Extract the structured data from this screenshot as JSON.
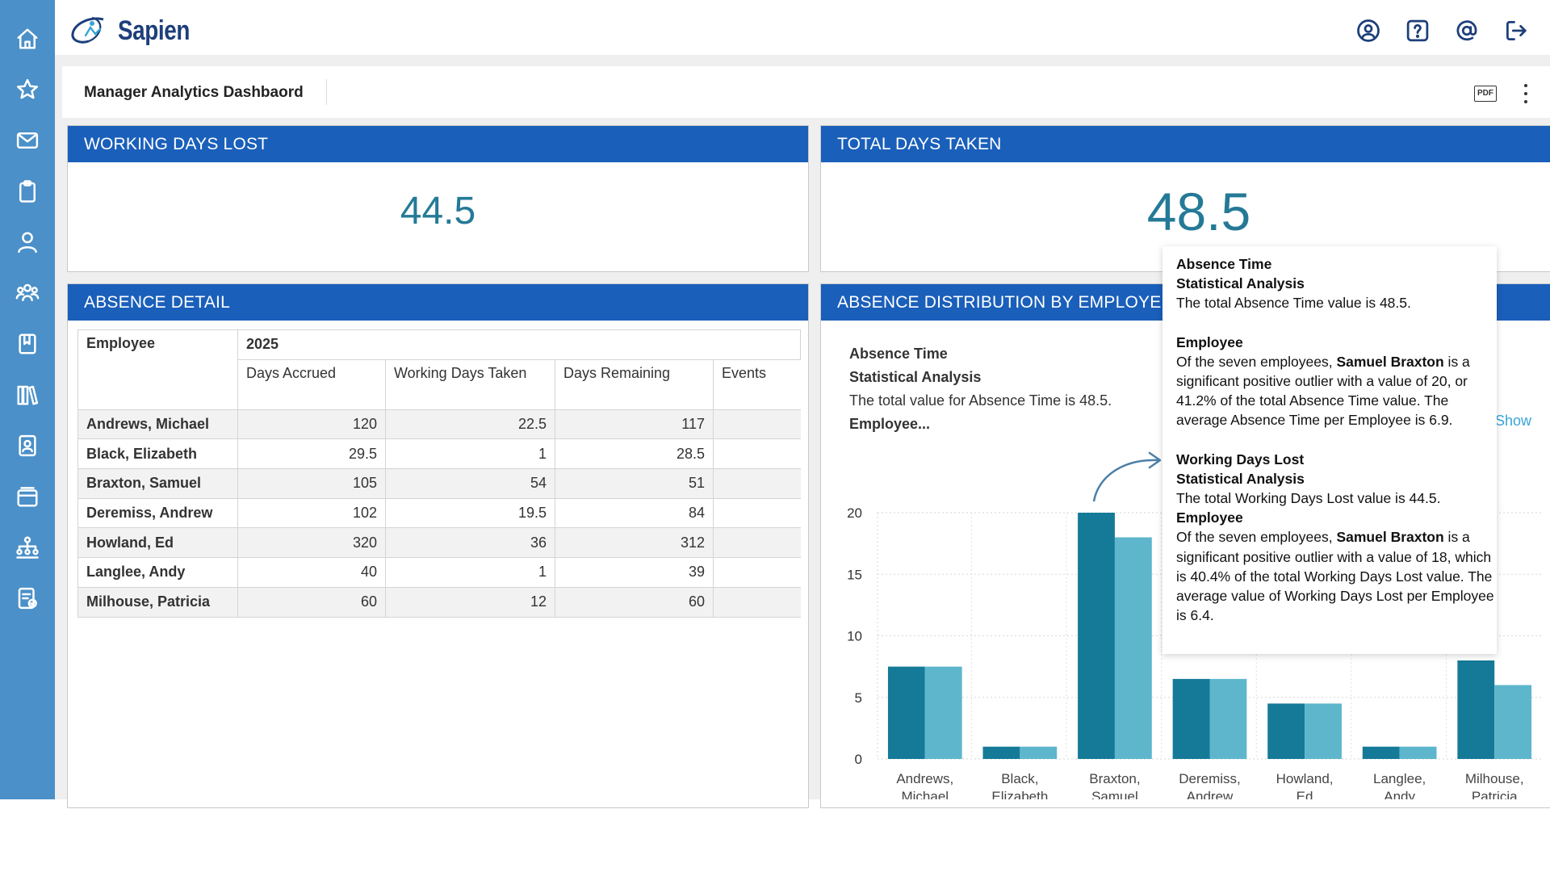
{
  "app": {
    "logo_text": "Sapien"
  },
  "sidebar": {
    "icons": [
      "home-icon",
      "star-icon",
      "mail-icon",
      "clipboard-icon",
      "person-icon",
      "team-icon",
      "book-icon",
      "library-icon",
      "contact-card-icon",
      "calendar-icon",
      "org-chart-icon",
      "report-icon"
    ]
  },
  "topbar": {
    "icons": [
      "user-circle-icon",
      "help-icon",
      "at-icon",
      "logout-icon"
    ]
  },
  "page": {
    "title": "Manager Analytics Dashbaord",
    "pdf_label": "PDF"
  },
  "kpis": {
    "working_days_lost": {
      "title": "WORKING DAYS LOST",
      "value": "44.5"
    },
    "total_days_taken": {
      "title": "TOTAL DAYS TAKEN",
      "value": "48.5"
    }
  },
  "absence_detail": {
    "title": "ABSENCE DETAIL",
    "header_employee": "Employee",
    "header_year": "2025",
    "columns": [
      "Days Accrued",
      "Working Days Taken",
      "Days Remaining",
      "Events"
    ],
    "rows": [
      {
        "name": "Andrews, Michael",
        "accrued": "120",
        "taken": "22.5",
        "remaining": "117",
        "events": ""
      },
      {
        "name": "Black, Elizabeth",
        "accrued": "29.5",
        "taken": "1",
        "remaining": "28.5",
        "events": ""
      },
      {
        "name": "Braxton, Samuel",
        "accrued": "105",
        "taken": "54",
        "remaining": "51",
        "events": ""
      },
      {
        "name": "Deremiss, Andrew",
        "accrued": "102",
        "taken": "19.5",
        "remaining": "84",
        "events": ""
      },
      {
        "name": "Howland, Ed",
        "accrued": "320",
        "taken": "36",
        "remaining": "312",
        "events": ""
      },
      {
        "name": "Langlee, Andy",
        "accrued": "40",
        "taken": "1",
        "remaining": "39",
        "events": ""
      },
      {
        "name": "Milhouse, Patricia",
        "accrued": "60",
        "taken": "12",
        "remaining": "60",
        "events": ""
      }
    ]
  },
  "distribution": {
    "title": "ABSENCE DISTRIBUTION BY EMPLOYEE",
    "summary_line1": "Absence Time",
    "summary_line2": "Statistical Analysis",
    "summary_line3": "The total value for Absence Time is 48.5.",
    "summary_line4": "Employee...",
    "show_link": "Show"
  },
  "tooltip": {
    "s1_h1": "Absence Time",
    "s1_h2": "Statistical Analysis",
    "s1_text": "The total Absence Time value is 48.5.",
    "s2_h": "Employee",
    "s2_pre": "Of the seven employees, ",
    "s2_bold": "Samuel Braxton",
    "s2_post": " is a significant positive outlier with a value of 20, or 41.2% of the total Absence Time value. The average Absence Time per Employee is 6.9.",
    "s3_h1": "Working Days Lost",
    "s3_h2": "Statistical Analysis",
    "s3_text": "The total Working Days Lost value is 44.5.",
    "s4_h": "Employee",
    "s4_pre": "Of the seven employees, ",
    "s4_bold": "Samuel Braxton",
    "s4_post": " is a significant positive outlier with a value of 18, which is 40.4% of the total Working Days Lost value. The average value of Working Days Lost per Employee is 6.4."
  },
  "chart_data": {
    "type": "bar",
    "categories": [
      [
        "Andrews,",
        "Michael"
      ],
      [
        "Black,",
        "Elizabeth"
      ],
      [
        "Braxton,",
        "Samuel"
      ],
      [
        "Deremiss,",
        "Andrew"
      ],
      [
        "Howland,",
        "Ed"
      ],
      [
        "Langlee,",
        "Andy"
      ],
      [
        "Milhouse,",
        "Patricia"
      ]
    ],
    "series": [
      {
        "values": [
          7.5,
          1,
          20,
          6.5,
          4.5,
          1,
          8
        ],
        "color": "#157a98"
      },
      {
        "values": [
          7.5,
          1,
          18,
          6.5,
          4.5,
          1,
          6
        ],
        "color": "#5db6cc"
      }
    ],
    "yticks": [
      0,
      5,
      10,
      15,
      20
    ],
    "ylim": [
      0,
      20
    ],
    "grid": true
  }
}
